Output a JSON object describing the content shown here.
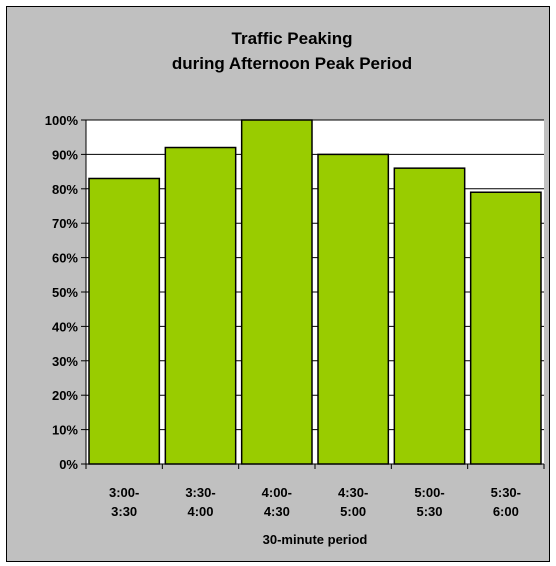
{
  "chart_data": {
    "type": "bar",
    "title": [
      "Traffic Peaking",
      "during Afternoon Peak Period"
    ],
    "categories": [
      [
        "3:00-",
        "3:30"
      ],
      [
        "3:30-",
        "4:00"
      ],
      [
        "4:00-",
        "4:30"
      ],
      [
        "4:30-",
        "5:00"
      ],
      [
        "5:00-",
        "5:30"
      ],
      [
        "5:30-",
        "6:00"
      ]
    ],
    "values": [
      83,
      92,
      100,
      90,
      86,
      79
    ],
    "xlabel": "30-minute period",
    "ylabel": "",
    "ylim": [
      0,
      100
    ],
    "y_ticks": [
      "0%",
      "10%",
      "20%",
      "30%",
      "40%",
      "50%",
      "60%",
      "70%",
      "80%",
      "90%",
      "100%"
    ],
    "grid": true,
    "colors": {
      "bar_fill": "#99cc00",
      "plot_background": "#ffffff",
      "chart_background": "#c0c0c0",
      "gridline": "#000000"
    }
  }
}
